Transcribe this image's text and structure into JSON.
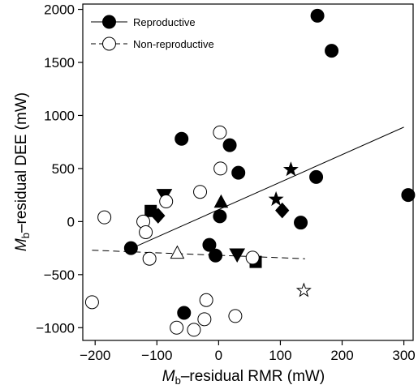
{
  "chart_data": {
    "type": "scatter",
    "xlabel": {
      "italic": "M",
      "sub": "b",
      "rest": "–residual RMR (mW)"
    },
    "ylabel": {
      "italic": "M",
      "sub": "b",
      "rest": "–residual DEE (mW)"
    },
    "xlim": [
      -220,
      315
    ],
    "ylim": [
      -1120,
      2050
    ],
    "xticks": [
      -200,
      -100,
      0,
      100,
      200,
      300
    ],
    "yticks": [
      -1000,
      -500,
      0,
      500,
      1000,
      1500,
      2000
    ],
    "tick_labels_x": [
      "−200",
      "−100",
      "0",
      "100",
      "200",
      "300"
    ],
    "tick_labels_y": [
      "−1000",
      "−500",
      "0",
      "500",
      "1000",
      "1500",
      "2000"
    ],
    "grid": false,
    "legend": {
      "placement": "top-left",
      "entries": [
        {
          "label": "Reproductive",
          "marker": "circle",
          "fill": "#000000",
          "line": "solid"
        },
        {
          "label": "Non-reproductive",
          "marker": "circle",
          "fill": "#ffffff",
          "line": "dashed"
        }
      ]
    },
    "series": [
      {
        "group": "reproductive",
        "fill": "#000000",
        "points": [
          {
            "x": 160,
            "y": 1940,
            "shape": "circle"
          },
          {
            "x": 183,
            "y": 1610,
            "shape": "circle"
          },
          {
            "x": -60,
            "y": 780,
            "shape": "circle"
          },
          {
            "x": 18,
            "y": 720,
            "shape": "circle"
          },
          {
            "x": 32,
            "y": 460,
            "shape": "circle"
          },
          {
            "x": 158,
            "y": 420,
            "shape": "circle"
          },
          {
            "x": 307,
            "y": 250,
            "shape": "circle"
          },
          {
            "x": 2,
            "y": 50,
            "shape": "circle"
          },
          {
            "x": 133,
            "y": -10,
            "shape": "circle"
          },
          {
            "x": -142,
            "y": -250,
            "shape": "circle"
          },
          {
            "x": -15,
            "y": -220,
            "shape": "circle"
          },
          {
            "x": -5,
            "y": -320,
            "shape": "circle"
          },
          {
            "x": -56,
            "y": -860,
            "shape": "circle"
          },
          {
            "x": 117,
            "y": 490,
            "shape": "star"
          },
          {
            "x": 93,
            "y": 210,
            "shape": "star"
          },
          {
            "x": -88,
            "y": 250,
            "shape": "triangle-down"
          },
          {
            "x": 30,
            "y": -310,
            "shape": "triangle-down"
          },
          {
            "x": 4,
            "y": 180,
            "shape": "triangle-up"
          },
          {
            "x": -110,
            "y": 100,
            "shape": "square"
          },
          {
            "x": 60,
            "y": -380,
            "shape": "square"
          },
          {
            "x": -98,
            "y": 55,
            "shape": "diamond"
          },
          {
            "x": 103,
            "y": 105,
            "shape": "diamond"
          }
        ]
      },
      {
        "group": "non-reproductive",
        "fill": "#ffffff",
        "points": [
          {
            "x": 2,
            "y": 840,
            "shape": "circle"
          },
          {
            "x": 3,
            "y": 500,
            "shape": "circle"
          },
          {
            "x": -30,
            "y": 280,
            "shape": "circle"
          },
          {
            "x": -85,
            "y": 190,
            "shape": "circle"
          },
          {
            "x": -185,
            "y": 40,
            "shape": "circle"
          },
          {
            "x": -122,
            "y": 0,
            "shape": "circle"
          },
          {
            "x": -118,
            "y": -100,
            "shape": "circle"
          },
          {
            "x": -112,
            "y": -350,
            "shape": "circle"
          },
          {
            "x": 55,
            "y": -340,
            "shape": "circle"
          },
          {
            "x": -205,
            "y": -760,
            "shape": "circle"
          },
          {
            "x": -20,
            "y": -740,
            "shape": "circle"
          },
          {
            "x": 27,
            "y": -890,
            "shape": "circle"
          },
          {
            "x": -23,
            "y": -920,
            "shape": "circle"
          },
          {
            "x": -68,
            "y": -1000,
            "shape": "circle"
          },
          {
            "x": -40,
            "y": -1020,
            "shape": "circle"
          },
          {
            "x": -67,
            "y": -300,
            "shape": "triangle-up"
          },
          {
            "x": 138,
            "y": -650,
            "shape": "star"
          }
        ]
      }
    ],
    "regression_lines": [
      {
        "group": "reproductive",
        "style": "solid",
        "x": [
          -140,
          300
        ],
        "y": [
          -250,
          890
        ]
      },
      {
        "group": "non-reproductive",
        "style": "dashed",
        "x": [
          -205,
          140
        ],
        "y": [
          -270,
          -350
        ]
      }
    ]
  }
}
